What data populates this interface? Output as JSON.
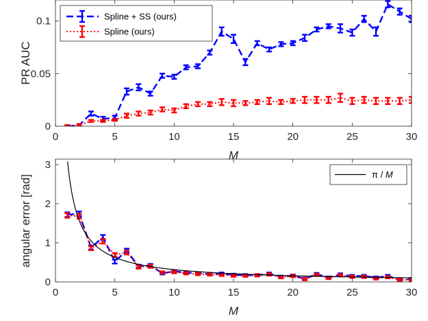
{
  "colors": {
    "blue": "#0000ff",
    "red": "#ff0000",
    "black": "#000000",
    "axis": "#262626"
  },
  "chart_data": [
    {
      "type": "line",
      "xlabel": "M",
      "ylabel": "PR AUC",
      "xlim": [
        0,
        30
      ],
      "ylim": [
        0,
        0.12
      ],
      "xticks": [
        "0",
        "5",
        "10",
        "15",
        "20",
        "25",
        "30"
      ],
      "yticks": [
        "0",
        "0.05",
        "0.1"
      ],
      "grid": false,
      "legend_position": "top-left",
      "x": [
        1,
        2,
        3,
        4,
        5,
        6,
        7,
        8,
        9,
        10,
        11,
        12,
        13,
        14,
        15,
        16,
        17,
        18,
        19,
        20,
        21,
        22,
        23,
        24,
        25,
        26,
        27,
        28,
        29,
        30
      ],
      "series": [
        {
          "name": "Spline + SS (ours)",
          "style": "dashed",
          "color": "#0000ff",
          "values": [
            0.0,
            0.001,
            0.012,
            0.007,
            0.008,
            0.033,
            0.037,
            0.031,
            0.048,
            0.047,
            0.056,
            0.057,
            0.07,
            0.09,
            0.083,
            0.061,
            0.079,
            0.073,
            0.078,
            0.079,
            0.084,
            0.092,
            0.095,
            0.093,
            0.089,
            0.102,
            0.09,
            0.116,
            0.109,
            0.102
          ],
          "err": [
            0.001,
            0.001,
            0.002,
            0.002,
            0.002,
            0.003,
            0.003,
            0.002,
            0.002,
            0.002,
            0.002,
            0.002,
            0.002,
            0.004,
            0.004,
            0.003,
            0.002,
            0.002,
            0.002,
            0.002,
            0.003,
            0.002,
            0.002,
            0.004,
            0.003,
            0.003,
            0.004,
            0.003,
            0.003,
            0.003
          ]
        },
        {
          "name": "Spline (ours)",
          "style": "dotted",
          "color": "#ff0000",
          "values": [
            0.0,
            0.001,
            0.005,
            0.005,
            0.006,
            0.01,
            0.012,
            0.013,
            0.016,
            0.015,
            0.019,
            0.021,
            0.021,
            0.023,
            0.022,
            0.022,
            0.023,
            0.024,
            0.023,
            0.024,
            0.025,
            0.025,
            0.025,
            0.027,
            0.024,
            0.025,
            0.024,
            0.024,
            0.024,
            0.025
          ],
          "err": [
            0.001,
            0.001,
            0.001,
            0.001,
            0.001,
            0.002,
            0.002,
            0.002,
            0.002,
            0.002,
            0.002,
            0.002,
            0.002,
            0.003,
            0.003,
            0.002,
            0.002,
            0.003,
            0.002,
            0.002,
            0.003,
            0.003,
            0.003,
            0.004,
            0.003,
            0.003,
            0.003,
            0.003,
            0.003,
            0.003
          ]
        }
      ]
    },
    {
      "type": "line",
      "xlabel": "M",
      "ylabel": "angular error [rad]",
      "xlim": [
        0,
        30
      ],
      "ylim": [
        0,
        3.14
      ],
      "xticks": [
        "0",
        "5",
        "10",
        "15",
        "20",
        "25",
        "30"
      ],
      "yticks": [
        "0",
        "1",
        "2",
        "3"
      ],
      "grid": false,
      "legend_position": "top-right",
      "x": [
        1,
        2,
        3,
        4,
        5,
        6,
        7,
        8,
        9,
        10,
        11,
        12,
        13,
        14,
        15,
        16,
        17,
        18,
        19,
        20,
        21,
        22,
        23,
        24,
        25,
        26,
        27,
        28,
        29,
        30
      ],
      "series": [
        {
          "style": "dashed",
          "color": "#0000ff",
          "values": [
            1.72,
            1.74,
            0.88,
            1.14,
            0.52,
            0.8,
            0.4,
            0.42,
            0.22,
            0.27,
            0.24,
            0.22,
            0.2,
            0.21,
            0.18,
            0.17,
            0.17,
            0.21,
            0.13,
            0.16,
            0.08,
            0.2,
            0.11,
            0.19,
            0.15,
            0.15,
            0.11,
            0.15,
            0.05,
            0.07
          ],
          "err": [
            0.06,
            0.06,
            0.05,
            0.06,
            0.05,
            0.05,
            0.04,
            0.04,
            0.03,
            0.03,
            0.03,
            0.03,
            0.03,
            0.03,
            0.03,
            0.03,
            0.03,
            0.03,
            0.03,
            0.03,
            0.03,
            0.03,
            0.03,
            0.03,
            0.03,
            0.03,
            0.03,
            0.03,
            0.03,
            0.03
          ]
        },
        {
          "style": "dotted",
          "color": "#ff0000",
          "values": [
            1.7,
            1.68,
            0.86,
            1.04,
            0.69,
            0.75,
            0.38,
            0.4,
            0.24,
            0.25,
            0.22,
            0.2,
            0.19,
            0.18,
            0.16,
            0.16,
            0.17,
            0.19,
            0.12,
            0.15,
            0.07,
            0.18,
            0.1,
            0.17,
            0.13,
            0.13,
            0.09,
            0.12,
            0.05,
            0.06
          ],
          "err": [
            0.06,
            0.06,
            0.05,
            0.06,
            0.05,
            0.05,
            0.04,
            0.04,
            0.03,
            0.03,
            0.03,
            0.03,
            0.03,
            0.03,
            0.03,
            0.03,
            0.03,
            0.03,
            0.03,
            0.03,
            0.03,
            0.03,
            0.03,
            0.03,
            0.03,
            0.03,
            0.03,
            0.03,
            0.03,
            0.03
          ]
        },
        {
          "name": "π / M",
          "name_prefix": "π / ",
          "name_var": "M",
          "style": "solid",
          "color": "#000000",
          "function": "pi/M"
        }
      ]
    }
  ]
}
